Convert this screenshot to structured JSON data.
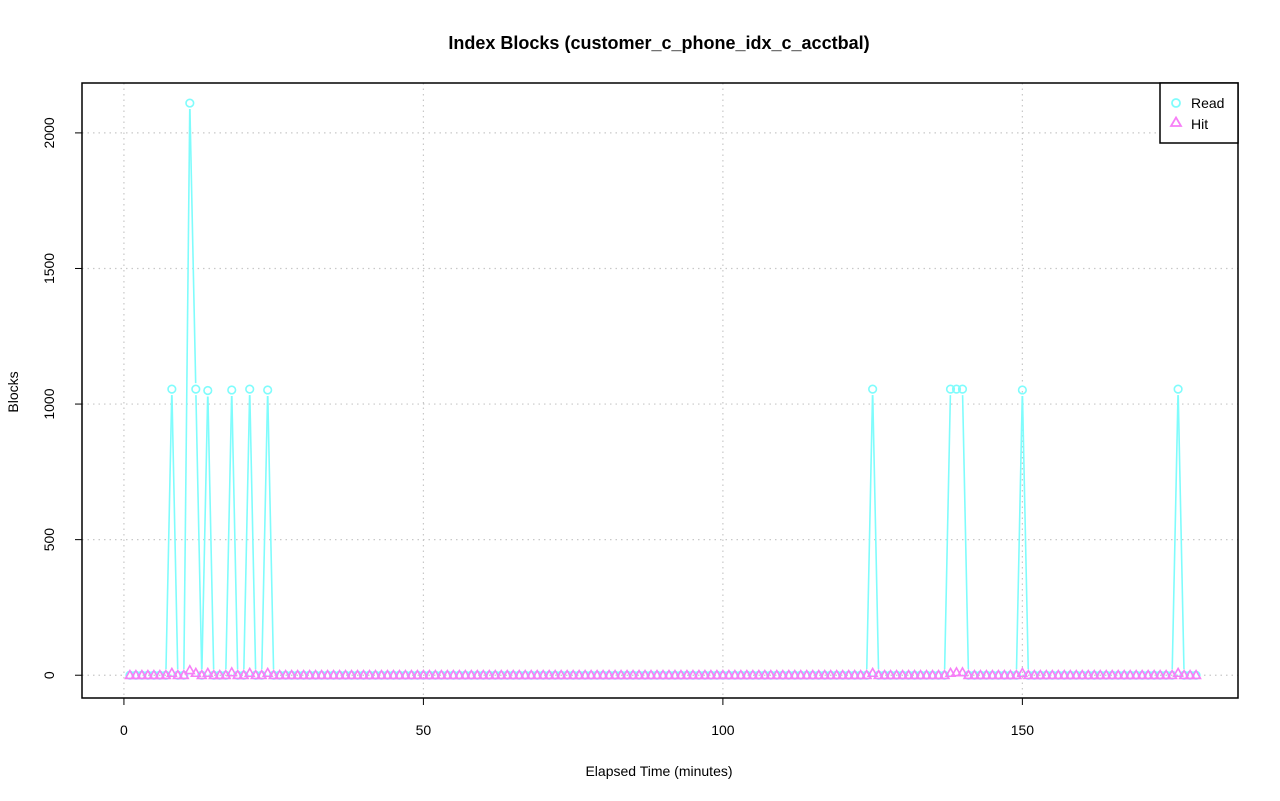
{
  "chart_data": {
    "type": "line",
    "title": "Index Blocks (customer_c_phone_idx_c_acctbal)",
    "xlabel": "Elapsed Time (minutes)",
    "ylabel": "Blocks",
    "xlim": [
      -7,
      186
    ],
    "ylim": [
      -84,
      2184
    ],
    "x_ticks": [
      0,
      50,
      100,
      150
    ],
    "y_ticks": [
      0,
      500,
      1000,
      1500,
      2000
    ],
    "grid": true,
    "legend_position": "top-right",
    "x": [
      1,
      2,
      3,
      4,
      5,
      6,
      7,
      8,
      9,
      10,
      11,
      12,
      13,
      14,
      15,
      16,
      17,
      18,
      19,
      20,
      21,
      22,
      23,
      24,
      25,
      26,
      27,
      28,
      29,
      30,
      31,
      32,
      33,
      34,
      35,
      36,
      37,
      38,
      39,
      40,
      41,
      42,
      43,
      44,
      45,
      46,
      47,
      48,
      49,
      50,
      51,
      52,
      53,
      54,
      55,
      56,
      57,
      58,
      59,
      60,
      61,
      62,
      63,
      64,
      65,
      66,
      67,
      68,
      69,
      70,
      71,
      72,
      73,
      74,
      75,
      76,
      77,
      78,
      79,
      80,
      81,
      82,
      83,
      84,
      85,
      86,
      87,
      88,
      89,
      90,
      91,
      92,
      93,
      94,
      95,
      96,
      97,
      98,
      99,
      100,
      101,
      102,
      103,
      104,
      105,
      106,
      107,
      108,
      109,
      110,
      111,
      112,
      113,
      114,
      115,
      116,
      117,
      118,
      119,
      120,
      121,
      122,
      123,
      124,
      125,
      126,
      127,
      128,
      129,
      130,
      131,
      132,
      133,
      134,
      135,
      136,
      137,
      138,
      139,
      140,
      141,
      142,
      143,
      144,
      145,
      146,
      147,
      148,
      149,
      150,
      151,
      152,
      153,
      154,
      155,
      156,
      157,
      158,
      159,
      160,
      161,
      162,
      163,
      164,
      165,
      166,
      167,
      168,
      169,
      170,
      171,
      172,
      173,
      174,
      175,
      176,
      177,
      178,
      179
    ],
    "series": [
      {
        "name": "Read",
        "color": "#7ffcfc",
        "marker": "circle",
        "values": [
          0,
          0,
          0,
          0,
          0,
          0,
          0,
          1055,
          0,
          0,
          2110,
          1055,
          0,
          1050,
          0,
          0,
          0,
          1052,
          0,
          0,
          1055,
          0,
          0,
          1052,
          0,
          0,
          0,
          0,
          0,
          0,
          0,
          0,
          0,
          0,
          0,
          0,
          0,
          0,
          0,
          0,
          0,
          0,
          0,
          0,
          0,
          0,
          0,
          0,
          0,
          0,
          0,
          0,
          0,
          0,
          0,
          0,
          0,
          0,
          0,
          0,
          0,
          0,
          0,
          0,
          0,
          0,
          0,
          0,
          0,
          0,
          0,
          0,
          0,
          0,
          0,
          0,
          0,
          0,
          0,
          0,
          0,
          0,
          0,
          0,
          0,
          0,
          0,
          0,
          0,
          0,
          0,
          0,
          0,
          0,
          0,
          0,
          0,
          0,
          0,
          0,
          0,
          0,
          0,
          0,
          0,
          0,
          0,
          0,
          0,
          0,
          0,
          0,
          0,
          0,
          0,
          0,
          0,
          0,
          0,
          0,
          0,
          0,
          0,
          0,
          1055,
          0,
          0,
          0,
          0,
          0,
          0,
          0,
          0,
          0,
          0,
          0,
          0,
          1055,
          1055,
          1055,
          0,
          0,
          0,
          0,
          0,
          0,
          0,
          0,
          0,
          1052,
          0,
          0,
          0,
          0,
          0,
          0,
          0,
          0,
          0,
          0,
          0,
          0,
          0,
          0,
          0,
          0,
          0,
          0,
          0,
          0,
          0,
          0,
          0,
          0,
          0,
          1055,
          0,
          0,
          0
        ]
      },
      {
        "name": "Hit",
        "color": "#f77ff7",
        "marker": "triangle",
        "values": [
          0,
          0,
          0,
          0,
          0,
          0,
          0,
          8,
          0,
          0,
          18,
          8,
          0,
          8,
          0,
          0,
          0,
          10,
          0,
          0,
          8,
          0,
          0,
          8,
          0,
          0,
          0,
          0,
          0,
          0,
          0,
          0,
          0,
          0,
          0,
          0,
          0,
          0,
          0,
          0,
          0,
          0,
          0,
          0,
          0,
          0,
          0,
          0,
          0,
          0,
          0,
          0,
          0,
          0,
          0,
          0,
          0,
          0,
          0,
          0,
          0,
          0,
          0,
          0,
          0,
          0,
          0,
          0,
          0,
          0,
          0,
          0,
          0,
          0,
          0,
          0,
          0,
          0,
          0,
          0,
          0,
          0,
          0,
          0,
          0,
          0,
          0,
          0,
          0,
          0,
          0,
          0,
          0,
          0,
          0,
          0,
          0,
          0,
          0,
          0,
          0,
          0,
          0,
          0,
          0,
          0,
          0,
          0,
          0,
          0,
          0,
          0,
          0,
          0,
          0,
          0,
          0,
          0,
          0,
          0,
          0,
          0,
          0,
          0,
          8,
          0,
          0,
          0,
          0,
          0,
          0,
          0,
          0,
          0,
          0,
          0,
          0,
          8,
          10,
          10,
          0,
          0,
          0,
          0,
          0,
          0,
          0,
          0,
          0,
          8,
          0,
          0,
          0,
          0,
          0,
          0,
          0,
          0,
          0,
          0,
          0,
          0,
          0,
          0,
          0,
          0,
          0,
          0,
          0,
          0,
          0,
          0,
          0,
          0,
          0,
          8,
          0,
          0,
          0
        ]
      }
    ]
  }
}
